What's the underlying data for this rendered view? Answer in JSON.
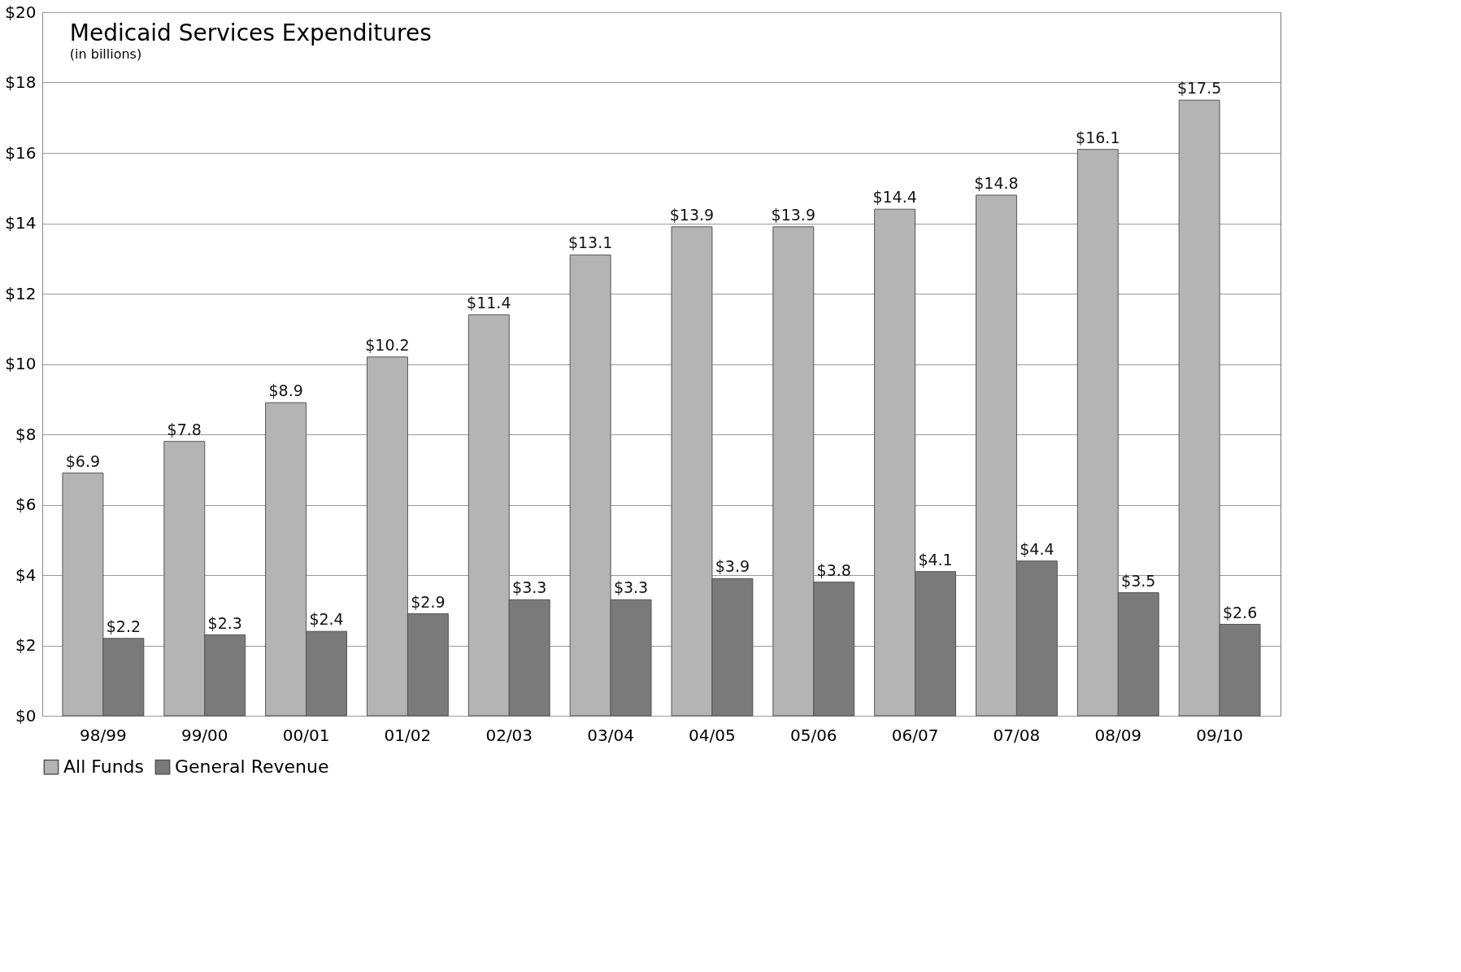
{
  "chart_data": {
    "type": "bar",
    "title": "Medicaid Services Expenditures",
    "subtitle": "(in billions)",
    "categories": [
      "98/99",
      "99/00",
      "00/01",
      "01/02",
      "02/03",
      "03/04",
      "04/05",
      "05/06",
      "06/07",
      "07/08",
      "08/09",
      "09/10"
    ],
    "series": [
      {
        "name": "All Funds",
        "color": "#b4b4b4",
        "values": [
          6.9,
          7.8,
          8.9,
          10.2,
          11.4,
          13.1,
          13.9,
          13.9,
          14.4,
          14.8,
          16.1,
          17.5
        ],
        "value_labels": [
          "$6.9",
          "$7.8",
          "$8.9",
          "$10.2",
          "$11.4",
          "$13.1",
          "$13.9",
          "$13.9",
          "$14.4",
          "$14.8",
          "$16.1",
          "$17.5"
        ]
      },
      {
        "name": "General Revenue",
        "color": "#7a7a7a",
        "values": [
          2.2,
          2.3,
          2.4,
          2.9,
          3.3,
          3.3,
          3.9,
          3.8,
          4.1,
          4.4,
          3.5,
          2.6
        ],
        "value_labels": [
          "$2.2",
          "$2.3",
          "$2.4",
          "$2.9",
          "$3.3",
          "$3.3",
          "$3.9",
          "$3.8",
          "$4.1",
          "$4.4",
          "$3.5",
          "$2.6"
        ]
      }
    ],
    "ylim": [
      0,
      20
    ],
    "yticks": [
      {
        "value": 0,
        "label": "$0"
      },
      {
        "value": 2,
        "label": "$2"
      },
      {
        "value": 4,
        "label": "$4"
      },
      {
        "value": 6,
        "label": "$6"
      },
      {
        "value": 8,
        "label": "$8"
      },
      {
        "value": 10,
        "label": "$10"
      },
      {
        "value": 12,
        "label": "$12"
      },
      {
        "value": 14,
        "label": "$14"
      },
      {
        "value": 16,
        "label": "$16"
      },
      {
        "value": 18,
        "label": "$18"
      },
      {
        "value": 20,
        "label": "$20"
      }
    ],
    "grid": "y",
    "legend": "bottom"
  }
}
